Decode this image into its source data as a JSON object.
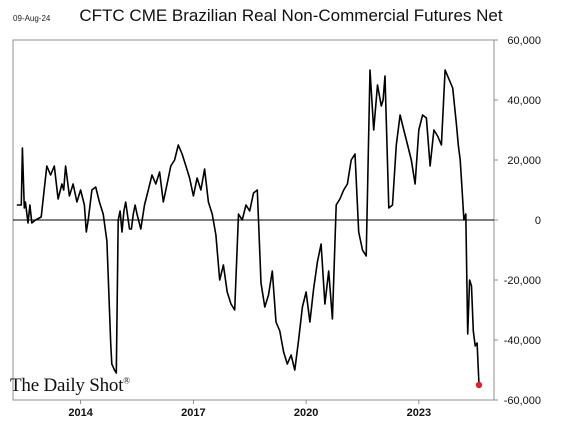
{
  "header": {
    "date": "09-Aug-24",
    "title": "CFTC CME Brazilian Real Non-Commercial Futures Net"
  },
  "branding": {
    "name": "The Daily Shot",
    "mark": "®"
  },
  "colors": {
    "line": "#000000",
    "marker": "#e0202a",
    "zero_line": "#000000",
    "axis": "#777777"
  },
  "chart_data": {
    "type": "line",
    "title": "CFTC CME Brazilian Real Non-Commercial Futures Net",
    "xlabel": "",
    "ylabel": "",
    "x_ticks": [
      "2014",
      "2017",
      "2020",
      "2023"
    ],
    "y_ticks": [
      {
        "value": 60000,
        "label": "60,000"
      },
      {
        "value": 40000,
        "label": "40,000"
      },
      {
        "value": 20000,
        "label": "20,000"
      },
      {
        "value": 0,
        "label": "0"
      },
      {
        "value": -20000,
        "label": "-20,000"
      },
      {
        "value": -40000,
        "label": "-40,000"
      },
      {
        "value": -60000,
        "label": "-60,000"
      }
    ],
    "xlim": [
      2012.2,
      2025.0
    ],
    "ylim": [
      -60000,
      60000
    ],
    "y_axis_position": "right",
    "grid": false,
    "series": [
      {
        "name": "",
        "x": [
          2012.3,
          2012.42,
          2012.45,
          2012.5,
          2012.53,
          2012.6,
          2012.65,
          2012.7,
          2012.8,
          2012.95,
          2013.1,
          2013.2,
          2013.3,
          2013.4,
          2013.5,
          2013.55,
          2013.6,
          2013.7,
          2013.8,
          2013.9,
          2014.0,
          2014.1,
          2014.15,
          2014.2,
          2014.3,
          2014.4,
          2014.5,
          2014.6,
          2014.7,
          2014.8,
          2014.83,
          2014.9,
          2014.95,
          2015.0,
          2015.05,
          2015.1,
          2015.15,
          2015.2,
          2015.3,
          2015.35,
          2015.4,
          2015.45,
          2015.5,
          2015.6,
          2015.7,
          2015.8,
          2015.9,
          2016.0,
          2016.1,
          2016.2,
          2016.3,
          2016.4,
          2016.5,
          2016.6,
          2016.7,
          2016.8,
          2016.9,
          2017.0,
          2017.1,
          2017.2,
          2017.3,
          2017.4,
          2017.5,
          2017.6,
          2017.7,
          2017.8,
          2017.9,
          2018.0,
          2018.1,
          2018.2,
          2018.3,
          2018.4,
          2018.5,
          2018.6,
          2018.7,
          2018.8,
          2018.9,
          2019.0,
          2019.1,
          2019.2,
          2019.3,
          2019.4,
          2019.5,
          2019.6,
          2019.7,
          2019.8,
          2019.9,
          2020.0,
          2020.1,
          2020.2,
          2020.3,
          2020.4,
          2020.5,
          2020.6,
          2020.7,
          2020.8,
          2020.9,
          2021.0,
          2021.1,
          2021.2,
          2021.3,
          2021.4,
          2021.5,
          2021.6,
          2021.7,
          2021.8,
          2021.9,
          2022.0,
          2022.05,
          2022.1,
          2022.2,
          2022.3,
          2022.4,
          2022.5,
          2022.6,
          2022.7,
          2022.8,
          2022.9,
          2023.0,
          2023.1,
          2023.2,
          2023.3,
          2023.4,
          2023.5,
          2023.6,
          2023.7,
          2023.8,
          2023.9,
          2024.0,
          2024.05,
          2024.1,
          2024.15,
          2024.2,
          2024.25,
          2024.3,
          2024.35,
          2024.4,
          2024.45,
          2024.5,
          2024.55,
          2024.6
        ],
        "values": [
          5000,
          5000,
          24000,
          4000,
          6000,
          -1000,
          5000,
          -1000,
          0,
          1000,
          18000,
          15000,
          18000,
          7000,
          12000,
          10000,
          18000,
          8000,
          12000,
          6000,
          10000,
          5000,
          -4000,
          0,
          10000,
          11000,
          6000,
          2000,
          -7000,
          -41000,
          -48000,
          -50000,
          -51000,
          0,
          3000,
          -4000,
          3000,
          6000,
          -3000,
          -3000,
          2000,
          5000,
          2000,
          -3000,
          5000,
          10000,
          15000,
          12000,
          16000,
          6000,
          12000,
          18000,
          20000,
          25000,
          22000,
          18000,
          14000,
          8000,
          14000,
          10000,
          17000,
          6000,
          2000,
          -5000,
          -20000,
          -15000,
          -24000,
          -28000,
          -30000,
          2000,
          0,
          5000,
          3000,
          9000,
          10000,
          -21000,
          -29000,
          -25000,
          -17000,
          -34000,
          -37000,
          -44000,
          -48000,
          -45000,
          -50000,
          -40000,
          -29000,
          -24000,
          -34000,
          -23000,
          -14000,
          -8000,
          -28000,
          -17000,
          -33000,
          5000,
          7000,
          10000,
          12000,
          20000,
          22000,
          -4000,
          -10000,
          -12000,
          50000,
          30000,
          45000,
          38000,
          40000,
          48000,
          4000,
          5000,
          25000,
          35000,
          30000,
          25000,
          20000,
          12000,
          30000,
          35000,
          34000,
          18000,
          30000,
          28000,
          25000,
          50000,
          47000,
          44000,
          32000,
          25000,
          20000,
          10000,
          0,
          2000,
          -38000,
          -20000,
          -22000,
          -37000,
          -42000,
          -41000,
          -55000
        ]
      }
    ],
    "last_point": {
      "x": 2024.6,
      "value": -55000
    }
  }
}
